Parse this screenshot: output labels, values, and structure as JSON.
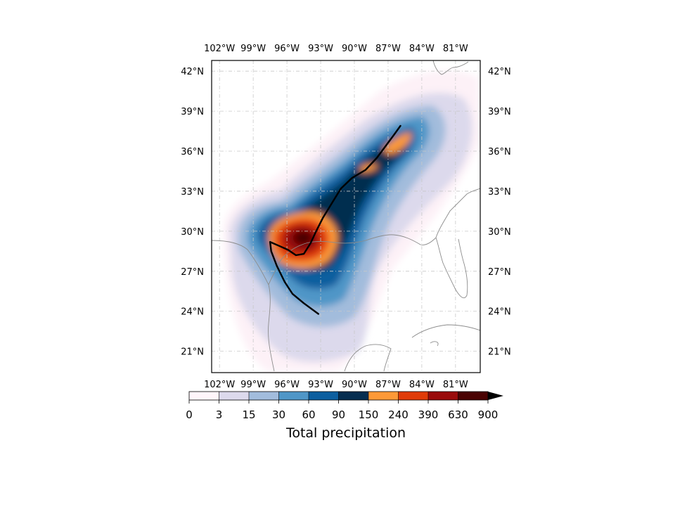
{
  "map": {
    "lon_ticks": [
      "102°W",
      "99°W",
      "96°W",
      "93°W",
      "90°W",
      "87°W",
      "84°W",
      "81°W"
    ],
    "lon_values": [
      -102,
      -99,
      -96,
      -93,
      -90,
      -87,
      -84,
      -81
    ],
    "lat_ticks": [
      "42°N",
      "39°N",
      "36°N",
      "33°N",
      "30°N",
      "27°N",
      "24°N",
      "21°N"
    ],
    "lat_values": [
      42,
      39,
      36,
      33,
      30,
      27,
      24,
      21
    ],
    "extent": {
      "lon_min": -102.7,
      "lon_max": -78.8,
      "lat_min": 19.4,
      "lat_max": 42.8
    },
    "storm_track": [
      [
        -93.2,
        23.8
      ],
      [
        -94.5,
        24.6
      ],
      [
        -95.5,
        25.3
      ],
      [
        -96.2,
        26.2
      ],
      [
        -96.9,
        27.4
      ],
      [
        -97.4,
        28.5
      ],
      [
        -97.5,
        29.2
      ],
      [
        -96.7,
        28.9
      ],
      [
        -95.9,
        28.6
      ],
      [
        -95.2,
        28.2
      ],
      [
        -94.5,
        28.3
      ],
      [
        -93.9,
        29.1
      ],
      [
        -93.4,
        30.0
      ],
      [
        -92.8,
        31.0
      ],
      [
        -92.0,
        32.1
      ],
      [
        -91.2,
        33.2
      ],
      [
        -90.2,
        34.0
      ],
      [
        -89.0,
        34.6
      ],
      [
        -88.0,
        35.5
      ],
      [
        -87.2,
        36.4
      ],
      [
        -86.5,
        37.2
      ],
      [
        -85.9,
        37.9
      ]
    ]
  },
  "colorbar": {
    "label": "Total precipitation",
    "levels": [
      "0",
      "3",
      "15",
      "30",
      "60",
      "90",
      "150",
      "240",
      "390",
      "630",
      "900"
    ],
    "colors": [
      "#fff5fa",
      "#dcd9ec",
      "#a2bcdc",
      "#4f96c7",
      "#0d5f9f",
      "#062e50",
      "#fd9937",
      "#e03b08",
      "#9a0c0c",
      "#4a0303"
    ],
    "extend_color": "#000000"
  },
  "colors": {
    "track": "#000000",
    "coast": "#8c8c8c",
    "grid": "#c8c8c8",
    "frame": "#000000"
  }
}
